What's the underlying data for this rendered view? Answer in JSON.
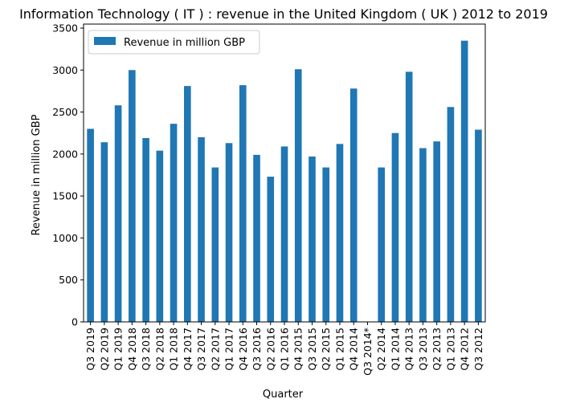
{
  "chart_data": {
    "type": "bar",
    "title": "Information Technology ( IT ) : revenue in the United Kingdom ( UK ) 2012 to 2019",
    "xlabel": "Quarter",
    "ylabel": "Revenue in million GBP",
    "ylim": [
      0,
      3500
    ],
    "yticks": [
      0,
      500,
      1000,
      1500,
      2000,
      2500,
      3000,
      3500
    ],
    "grid": false,
    "legend_position": "top-left",
    "bar_color": "#1f77b4",
    "categories": [
      "Q3 2019",
      "Q2 2019",
      "Q1 2019",
      "Q4 2018",
      "Q3 2018",
      "Q2 2018",
      "Q1 2018",
      "Q4 2017",
      "Q3 2017",
      "Q2 2017",
      "Q1 2017",
      "Q4 2016",
      "Q3 2016",
      "Q2 2016",
      "Q1 2016",
      "Q4 2015",
      "Q3 2015",
      "Q2 2015",
      "Q1 2015",
      "Q4 2014",
      "Q3 2014*",
      "Q2 2014",
      "Q1 2014",
      "Q4 2013",
      "Q3 2013",
      "Q2 2013",
      "Q1 2013",
      "Q4 2012",
      "Q3 2012"
    ],
    "series": [
      {
        "name": "Revenue in million GBP",
        "values": [
          2300,
          2140,
          2580,
          3000,
          2190,
          2040,
          2360,
          2810,
          2200,
          1840,
          2130,
          2820,
          1990,
          1730,
          2090,
          3010,
          1970,
          1840,
          2120,
          2780,
          null,
          1840,
          2250,
          2980,
          2070,
          2150,
          2560,
          3350,
          2290
        ]
      }
    ]
  }
}
